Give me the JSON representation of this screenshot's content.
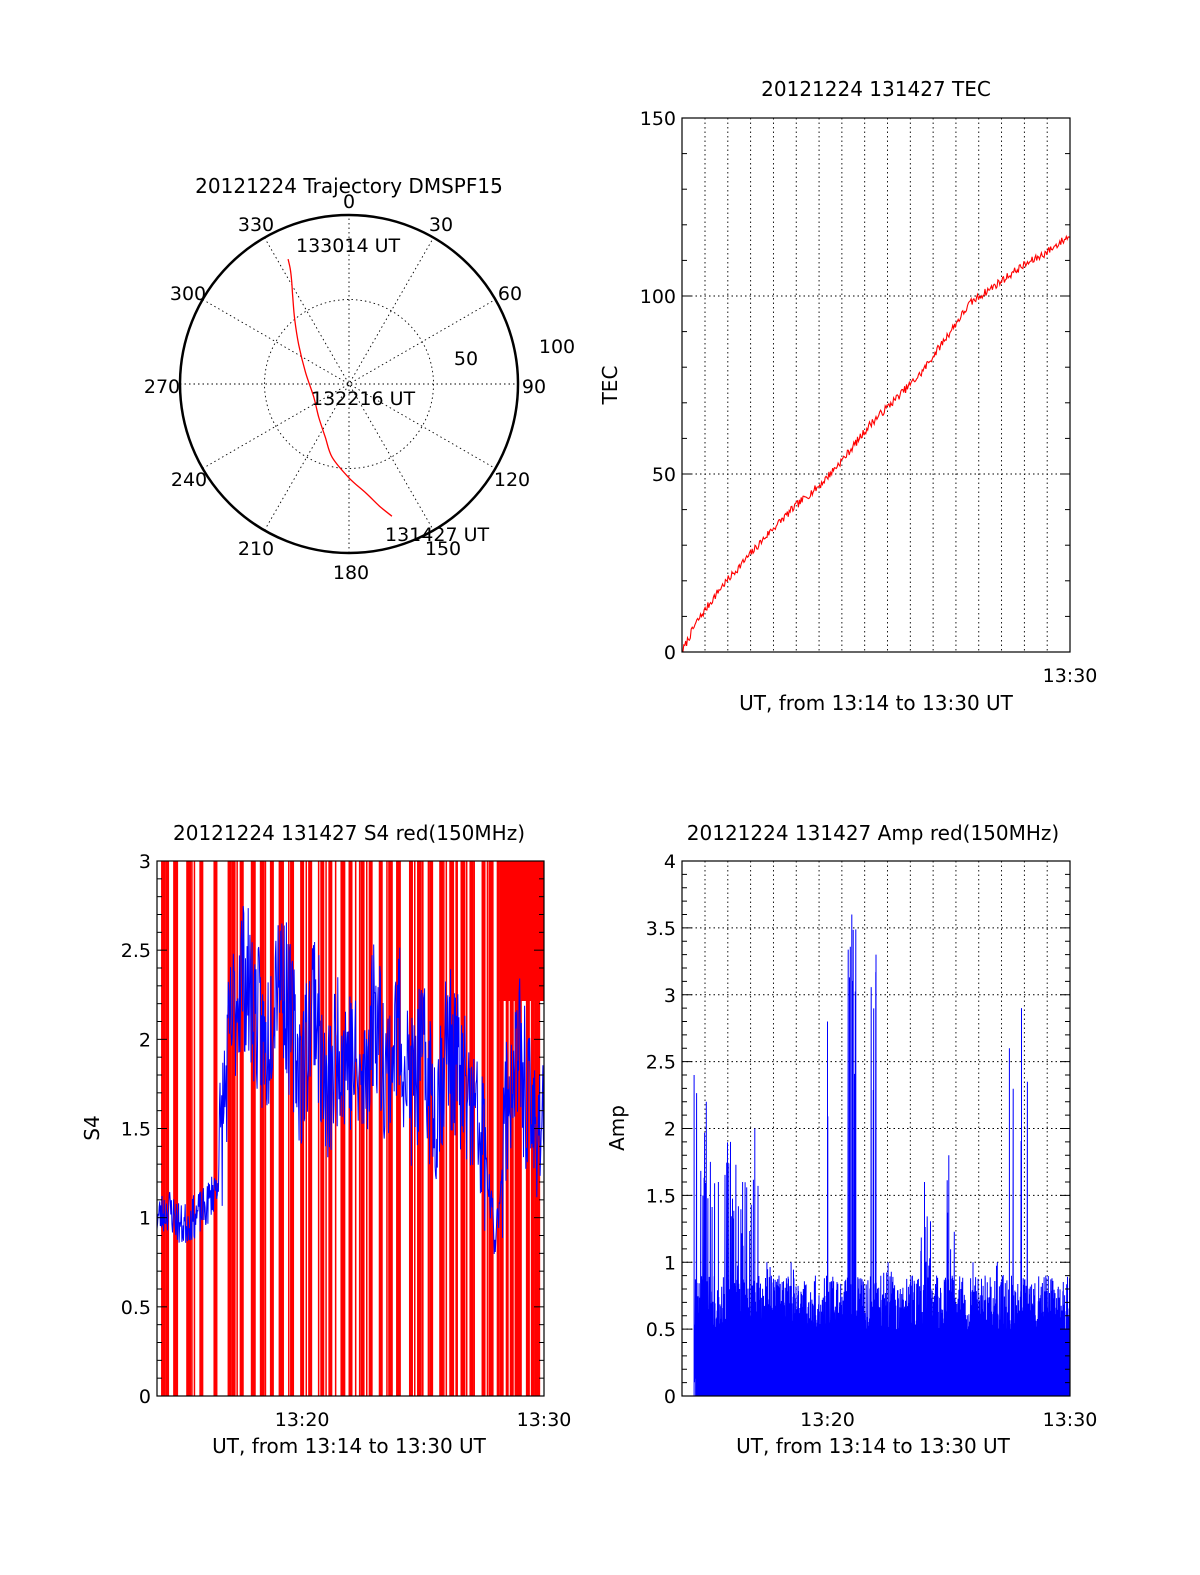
{
  "chart_data": [
    {
      "type": "polar",
      "title": "20121224 Trajectory DMSPF15",
      "azimuth_labels": [
        "0",
        "30",
        "60",
        "90",
        "120",
        "150",
        "180",
        "210",
        "240",
        "270",
        "300",
        "330"
      ],
      "elevation_labels": [
        "50",
        "100"
      ],
      "series": [
        {
          "color": "#ff0000",
          "points": [
            {
              "az": 334,
              "el": 16
            },
            {
              "az": 333,
              "el": 21
            },
            {
              "az": 331,
              "el": 27
            },
            {
              "az": 327,
              "el": 35
            },
            {
              "az": 320,
              "el": 45
            },
            {
              "az": 308,
              "el": 56
            },
            {
              "az": 285,
              "el": 66
            },
            {
              "az": 250,
              "el": 70
            },
            {
              "az": 222,
              "el": 66
            },
            {
              "az": 204,
              "el": 59
            },
            {
              "az": 193,
              "el": 50
            },
            {
              "az": 180,
              "el": 40
            },
            {
              "az": 171,
              "el": 31
            },
            {
              "az": 166,
              "el": 23
            },
            {
              "az": 162,
              "el": 16
            }
          ]
        }
      ],
      "annotations": [
        "133014 UT",
        "132216 UT",
        "131427 UT"
      ]
    },
    {
      "type": "line",
      "title": "20121224 131427 TEC",
      "xlabel": "UT, from 13:14 to 13:30 UT",
      "ylabel": "TEC",
      "x_tick_labels": [
        "13:30"
      ],
      "y_tick_labels": [
        "0",
        "50",
        "100",
        "150"
      ],
      "xlim": [
        "13:14:27",
        "13:30:00"
      ],
      "ylim": [
        0,
        150
      ],
      "grid": "vertical dotted",
      "series": [
        {
          "color": "#ff0000",
          "x": [
            "13:14:27",
            "13:15:00",
            "13:16:00",
            "13:17:00",
            "13:18:00",
            "13:19:00",
            "13:20:00",
            "13:21:00",
            "13:22:00",
            "13:23:00",
            "13:24:00",
            "13:25:00",
            "13:26:00",
            "13:27:00",
            "13:28:00",
            "13:29:00",
            "13:30:00"
          ],
          "y": [
            0,
            8,
            18,
            26,
            34,
            41,
            47,
            55,
            64,
            71,
            78,
            88,
            98,
            103,
            108,
            112,
            117
          ]
        }
      ]
    },
    {
      "type": "line",
      "title": "20121224 131427 S4 red(150MHz)",
      "xlabel": "UT, from 13:14 to 13:30 UT",
      "ylabel": "S4",
      "x_tick_labels": [
        "13:20",
        "13:30"
      ],
      "y_tick_labels": [
        "0",
        "0.5",
        "1",
        "1.5",
        "2",
        "2.5",
        "3"
      ],
      "xlim": [
        "13:14:00",
        "13:30:00"
      ],
      "ylim": [
        0,
        3
      ],
      "series": [
        {
          "color": "#ff0000",
          "style": "vertical bars",
          "x": [
            "13:14:15",
            "13:14:25",
            "13:14:45",
            "13:15:20",
            "13:15:50",
            "13:16:25",
            "13:17:00",
            "13:17:10",
            "13:17:30",
            "13:18:00",
            "13:18:20",
            "13:18:45",
            "13:19:10",
            "13:19:35",
            "13:20:00",
            "13:20:20",
            "13:20:50",
            "13:21:10",
            "13:21:40",
            "13:22:00",
            "13:22:30",
            "13:22:50",
            "13:23:15",
            "13:23:40",
            "13:24:00",
            "13:24:30",
            "13:24:50",
            "13:25:20",
            "13:25:45",
            "13:26:10",
            "13:26:40",
            "13:27:00",
            "13:27:30",
            "13:27:50",
            "13:28:15",
            "13:28:40",
            "13:29:00",
            "13:29:20",
            "13:29:45"
          ],
          "y": [
            3,
            3,
            3,
            3,
            3,
            3,
            3,
            3,
            3,
            3,
            3,
            3,
            3,
            3,
            3,
            3,
            3,
            3,
            3,
            3,
            3,
            3,
            3,
            3,
            3,
            3,
            3,
            3,
            3,
            3,
            3,
            3,
            3,
            3,
            3,
            3,
            3,
            3,
            3
          ]
        },
        {
          "color": "#0000ff",
          "x": [
            "13:14:00",
            "13:14:30",
            "13:15:00",
            "13:15:30",
            "13:16:00",
            "13:16:30",
            "13:17:00",
            "13:17:30",
            "13:18:00",
            "13:18:30",
            "13:19:00",
            "13:19:30",
            "13:20:00",
            "13:20:30",
            "13:21:00",
            "13:21:30",
            "13:22:00",
            "13:22:30",
            "13:23:00",
            "13:23:30",
            "13:24:00",
            "13:24:30",
            "13:25:00",
            "13:25:30",
            "13:26:00",
            "13:26:30",
            "13:27:00",
            "13:27:30",
            "13:28:00",
            "13:28:30",
            "13:29:00",
            "13:29:30",
            "13:30:00"
          ],
          "y": [
            1.0,
            1.05,
            0.95,
            1.0,
            1.05,
            1.2,
            2.0,
            2.4,
            2.2,
            1.9,
            2.5,
            2.1,
            1.8,
            2.3,
            1.6,
            2.0,
            1.9,
            1.7,
            2.2,
            1.8,
            2.1,
            1.7,
            1.9,
            1.6,
            2.0,
            1.8,
            1.6,
            1.4,
            0.85,
            1.7,
            1.9,
            1.5,
            1.6
          ]
        }
      ]
    },
    {
      "type": "line",
      "title": "20121224 131427 Amp red(150MHz)",
      "xlabel": "UT, from 13:14 to 13:30 UT",
      "ylabel": "Amp",
      "x_tick_labels": [
        "13:20",
        "13:30"
      ],
      "y_tick_labels": [
        "0",
        "0.5",
        "1",
        "1.5",
        "2",
        "2.5",
        "3",
        "3.5",
        "4"
      ],
      "xlim": [
        "13:14:00",
        "13:30:00"
      ],
      "ylim": [
        0,
        4
      ],
      "grid": "dotted",
      "series": [
        {
          "color": "#0000ff",
          "x": [
            "13:14:30",
            "13:15:00",
            "13:15:30",
            "13:16:00",
            "13:16:30",
            "13:17:00",
            "13:17:30",
            "13:18:00",
            "13:18:30",
            "13:19:00",
            "13:19:30",
            "13:20:00",
            "13:20:30",
            "13:21:00",
            "13:21:30",
            "13:22:00",
            "13:22:30",
            "13:23:00",
            "13:23:30",
            "13:24:00",
            "13:24:30",
            "13:25:00",
            "13:25:30",
            "13:26:00",
            "13:26:30",
            "13:27:00",
            "13:27:30",
            "13:28:00",
            "13:28:30",
            "13:29:00",
            "13:29:30",
            "13:30:00"
          ],
          "y": [
            2.4,
            2.2,
            1.6,
            1.9,
            1.6,
            2.0,
            1.0,
            0.9,
            1.0,
            0.8,
            0.9,
            2.8,
            0.7,
            3.6,
            0.8,
            3.3,
            1.0,
            0.8,
            0.9,
            1.6,
            0.9,
            1.8,
            0.8,
            1.0,
            0.9,
            1.0,
            2.6,
            2.9,
            0.8,
            0.9,
            0.8,
            0.8
          ]
        }
      ]
    }
  ]
}
